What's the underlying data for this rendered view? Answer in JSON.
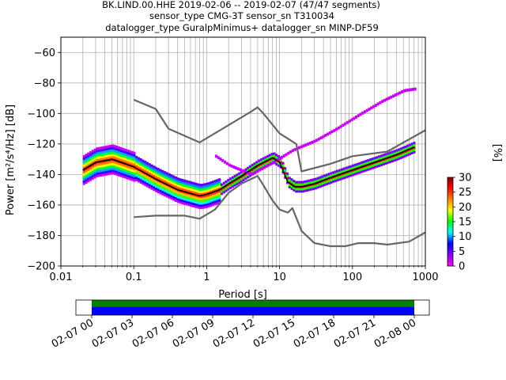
{
  "title": {
    "line1": "BK.LIND.00.HHE   2019-02-06 -- 2019-02-07  (47/47 segments)",
    "line2": "sensor_type CMG-3T sensor_sn T310034",
    "line3": "datalogger_type GuralpMinimus+ datalogger_sn MINP-DF59"
  },
  "chart_data": [
    {
      "type": "heatmap",
      "title": "BK.LIND.00.HHE   2019-02-06 -- 2019-02-07  (47/47 segments)",
      "xlabel": "Period [s]",
      "ylabel": "Power [m²/s⁴/Hz] [dB]",
      "xscale": "log",
      "xlim": [
        0.01,
        1000
      ],
      "ylim": [
        -200,
        -50
      ],
      "x_tick_values": [
        0.01,
        0.1,
        1,
        10,
        100,
        1000
      ],
      "x_tick_labels": [
        "0.01",
        "0.1",
        "1",
        "10",
        "100",
        "1000"
      ],
      "y_ticks": [
        -200,
        -180,
        -160,
        -140,
        -120,
        -100,
        -80,
        -60
      ],
      "grid": true,
      "colorbar": {
        "label": "[%]",
        "range": [
          0,
          30
        ],
        "ticks": [
          0,
          5,
          10,
          15,
          20,
          25,
          30
        ],
        "colors": [
          "#ffffff",
          "#ff00ff",
          "#8000ff",
          "#0000ff",
          "#00ffff",
          "#00ff00",
          "#ffff00",
          "#ff8000",
          "#ff0000",
          "#800000"
        ]
      },
      "series": [
        {
          "name": "",
          "color": "#000000",
          "x": [
            0.02,
            0.03,
            0.05,
            0.1,
            0.2,
            0.4,
            0.8,
            1.0,
            1.5,
            2,
            3,
            5,
            8,
            10,
            13,
            16,
            20,
            30,
            50,
            100,
            200,
            400,
            700
          ],
          "y": [
            -137,
            -132,
            -130,
            -135,
            -143,
            -150,
            -154,
            -153,
            -150,
            -146,
            -141,
            -134,
            -129,
            -132,
            -145,
            -148,
            -148,
            -146,
            -142,
            -137,
            -132,
            -127,
            -122
          ]
        },
        {
          "name": "",
          "color": "#666666",
          "x": [
            0.1,
            0.2,
            0.3,
            0.8,
            4,
            5,
            6,
            10,
            17,
            20,
            50,
            100,
            300,
            1000
          ],
          "y": [
            -91,
            -97,
            -110,
            -119,
            -99,
            -96,
            -100,
            -113,
            -120,
            -138,
            -133,
            -128,
            -125,
            -111
          ]
        },
        {
          "name": "",
          "color": "#666666",
          "x": [
            0.1,
            0.2,
            0.5,
            0.8,
            1.3,
            2,
            3,
            5,
            6,
            8,
            10,
            13,
            15,
            20,
            30,
            50,
            80,
            120,
            200,
            300,
            600,
            1000
          ],
          "y": [
            -168,
            -167,
            -167,
            -169,
            -163,
            -152,
            -146,
            -141,
            -147,
            -157,
            -163,
            -165,
            -162,
            -177,
            -185,
            -187,
            -187,
            -185,
            -185,
            -186,
            -184,
            -178
          ]
        },
        {
          "name": "",
          "color": "#8000ff",
          "x": [
            1.3,
            2,
            4,
            8,
            15,
            30,
            60,
            120,
            250,
            500,
            700
          ],
          "y": [
            -128,
            -134,
            -140,
            -132,
            -124,
            -118,
            -110,
            -101,
            -92,
            -85,
            -84
          ]
        }
      ]
    },
    {
      "type": "bar",
      "xlabel": "",
      "x_tick_labels": [
        "02-07 00",
        "02-07 03",
        "02-07 06",
        "02-07 09",
        "02-07 12",
        "02-07 15",
        "02-07 18",
        "02-07 21",
        "02-08 00"
      ],
      "series": [
        {
          "name": "",
          "color": "#008000",
          "start": "02-07 00",
          "end": "02-08 00"
        },
        {
          "name": "",
          "color": "#0000ff",
          "start": "02-07 00",
          "end": "02-08 00"
        }
      ]
    }
  ]
}
